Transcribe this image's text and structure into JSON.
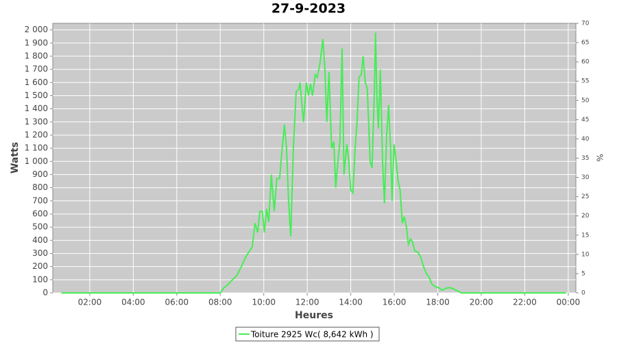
{
  "chart_data": {
    "type": "line",
    "title": "27-9-2023",
    "x_label": "Heures",
    "y_label": "Watts",
    "y2_label": "%",
    "grid": true,
    "legend": "bottom",
    "x": [
      0.7,
      8.0,
      8.17,
      8.33,
      8.5,
      8.75,
      8.97,
      9.16,
      9.35,
      9.47,
      9.6,
      9.72,
      9.82,
      9.94,
      10.03,
      10.13,
      10.23,
      10.35,
      10.48,
      10.6,
      10.73,
      10.82,
      10.95,
      11.05,
      11.14,
      11.24,
      11.36,
      11.49,
      11.61,
      11.67,
      11.77,
      11.83,
      11.96,
      12.05,
      12.15,
      12.24,
      12.37,
      12.46,
      12.59,
      12.72,
      12.81,
      12.9,
      13.0,
      13.12,
      13.22,
      13.31,
      13.41,
      13.5,
      13.6,
      13.69,
      13.82,
      13.91,
      14.0,
      14.1,
      14.2,
      14.29,
      14.38,
      14.48,
      14.57,
      14.67,
      14.76,
      14.89,
      14.98,
      15.08,
      15.14,
      15.2,
      15.27,
      15.36,
      15.46,
      15.55,
      15.65,
      15.74,
      15.83,
      15.9,
      15.99,
      16.09,
      16.18,
      16.27,
      16.37,
      16.46,
      16.56,
      16.65,
      16.75,
      16.84,
      16.94,
      17.09,
      17.22,
      17.35,
      17.47,
      17.6,
      17.72,
      17.85,
      18.04,
      18.2,
      18.36,
      18.55,
      18.73,
      18.92,
      19.08,
      23.9
    ],
    "series": [
      {
        "name": "Toiture 2925 Wc( 8,642 kWh )",
        "color": "#44ee55",
        "values": [
          0,
          0,
          40,
          60,
          90,
          130,
          200,
          270,
          320,
          350,
          530,
          460,
          620,
          620,
          460,
          640,
          540,
          900,
          620,
          870,
          870,
          1050,
          1280,
          1100,
          700,
          430,
          1100,
          1530,
          1550,
          1600,
          1400,
          1300,
          1600,
          1500,
          1590,
          1500,
          1660,
          1640,
          1750,
          1930,
          1700,
          1300,
          1680,
          1100,
          1150,
          800,
          1000,
          1150,
          1860,
          900,
          1130,
          1000,
          780,
          760,
          1100,
          1300,
          1640,
          1660,
          1800,
          1600,
          1550,
          1000,
          950,
          1500,
          1980,
          1500,
          1250,
          1700,
          1000,
          680,
          1200,
          1430,
          1100,
          700,
          1130,
          1000,
          850,
          780,
          530,
          580,
          500,
          370,
          410,
          390,
          320,
          310,
          270,
          200,
          150,
          120,
          70,
          50,
          40,
          20,
          35,
          40,
          30,
          15,
          0,
          0
        ]
      }
    ],
    "xlim": [
      0.3,
      24.35
    ],
    "xticks": [
      {
        "value": 2,
        "label": "02:00"
      },
      {
        "value": 4,
        "label": "04:00"
      },
      {
        "value": 6,
        "label": "06:00"
      },
      {
        "value": 8,
        "label": "08:00"
      },
      {
        "value": 10,
        "label": "10:00"
      },
      {
        "value": 12,
        "label": "12:00"
      },
      {
        "value": 14,
        "label": "14:00"
      },
      {
        "value": 16,
        "label": "16:00"
      },
      {
        "value": 18,
        "label": "18:00"
      },
      {
        "value": 20,
        "label": "20:00"
      },
      {
        "value": 22,
        "label": "22:00"
      },
      {
        "value": 24,
        "label": "00:00"
      }
    ],
    "ylim": [
      0,
      2050
    ],
    "yticks": [
      0,
      100,
      200,
      300,
      400,
      500,
      600,
      700,
      800,
      900,
      {
        "value": 1000,
        "label": "1 000"
      },
      {
        "value": 1100,
        "label": "1 100"
      },
      {
        "value": 1200,
        "label": "1 200"
      },
      {
        "value": 1300,
        "label": "1 300"
      },
      {
        "value": 1400,
        "label": "1 400"
      },
      {
        "value": 1500,
        "label": "1 500"
      },
      {
        "value": 1600,
        "label": "1 600"
      },
      {
        "value": 1700,
        "label": "1 700"
      },
      {
        "value": 1800,
        "label": "1 800"
      },
      {
        "value": 1900,
        "label": "1 900"
      },
      {
        "value": 2000,
        "label": "2 000"
      }
    ],
    "y2lim": [
      0,
      70
    ],
    "y2ticks": [
      0,
      5,
      10,
      15,
      20,
      25,
      30,
      35,
      40,
      45,
      50,
      55,
      60,
      65,
      70
    ]
  }
}
